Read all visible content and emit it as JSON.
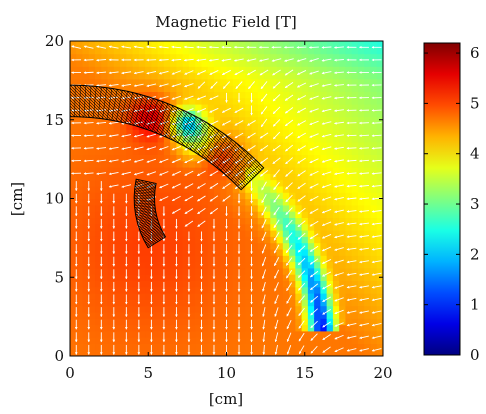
{
  "chart_data": {
    "type": "heatmap",
    "title": "Magnetic Field [T]",
    "xlabel": "[cm]",
    "ylabel": "[cm]",
    "xlim": [
      0,
      20
    ],
    "ylim": [
      0,
      20
    ],
    "x_ticks": [
      0,
      5,
      10,
      15,
      20
    ],
    "y_ticks": [
      0,
      5,
      10,
      15,
      20
    ],
    "x_tick_labels": [
      "0",
      "5",
      "10",
      "15",
      "20"
    ],
    "y_tick_labels": [
      "0",
      "5",
      "10",
      "15",
      "20"
    ],
    "colorbar": {
      "range": [
        0,
        6.2
      ],
      "ticks": [
        0,
        1,
        2,
        3,
        4,
        5,
        6
      ],
      "tick_labels": [
        "0",
        "1",
        "2",
        "3",
        "4",
        "5",
        "6"
      ],
      "colormap": "jet"
    },
    "overlay": "white quiver arrows showing field direction",
    "coils": [
      {
        "center": [
          0,
          0
        ],
        "r_inner": 15.2,
        "r_outer": 17.2,
        "angle_range_deg": [
          44,
          90
        ]
      },
      {
        "center": [
          10,
          10
        ],
        "r_inner": 4.6,
        "r_outer": 5.9,
        "angle_range_deg": [
          168,
          212
        ]
      }
    ]
  }
}
